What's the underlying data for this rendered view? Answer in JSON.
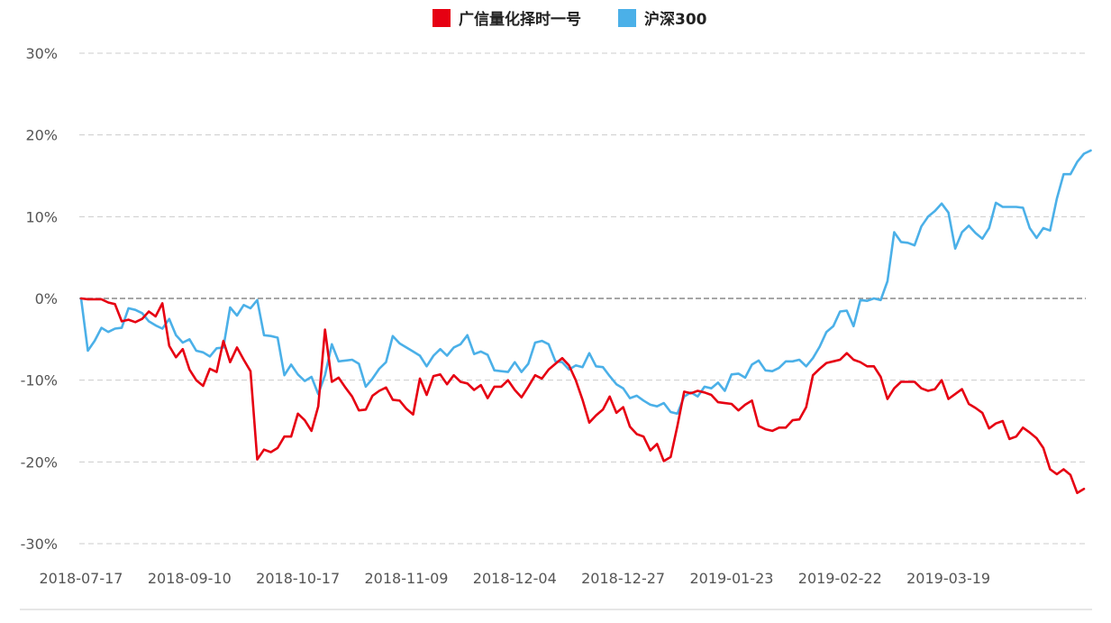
{
  "chart_data": {
    "type": "line",
    "xlabel": "",
    "ylabel": "",
    "ylim": [
      -30,
      30
    ],
    "ytick_labels": [
      {
        "value": 30,
        "label": "30%"
      },
      {
        "value": 20,
        "label": "20%"
      },
      {
        "value": 10,
        "label": "10%"
      },
      {
        "value": 0,
        "label": "0%"
      },
      {
        "value": -10,
        "label": "-10%"
      },
      {
        "value": -20,
        "label": "-20%"
      },
      {
        "value": -30,
        "label": "-30%"
      }
    ],
    "xtick_labels": [
      {
        "index": 0,
        "label": "2018-07-17"
      },
      {
        "index": 16,
        "label": "2018-09-10"
      },
      {
        "index": 32,
        "label": "2018-10-17"
      },
      {
        "index": 48,
        "label": "2018-11-09"
      },
      {
        "index": 64,
        "label": "2018-12-04"
      },
      {
        "index": 80,
        "label": "2018-12-27"
      },
      {
        "index": 96,
        "label": "2019-01-23"
      },
      {
        "index": 112,
        "label": "2019-02-22"
      },
      {
        "index": 128,
        "label": "2019-03-19"
      }
    ],
    "grid": true,
    "legend_position": "top-center",
    "series": [
      {
        "name": "广信量化择时一号",
        "color": "#e60012",
        "values": [
          0,
          -0.1,
          -0.1,
          -0.1,
          -0.5,
          -0.7,
          -2.8,
          -2.6,
          -2.9,
          -2.5,
          -1.6,
          -2.2,
          -0.6,
          -5.8,
          -7.2,
          -6.2,
          -8.7,
          -10,
          -10.7,
          -8.6,
          -9,
          -5.2,
          -7.8,
          -6,
          -7.5,
          -8.9,
          -19.7,
          -18.5,
          -18.8,
          -18.3,
          -16.9,
          -16.9,
          -14.1,
          -14.9,
          -16.2,
          -13.2,
          -3.8,
          -10.2,
          -9.7,
          -10.9,
          -12,
          -13.7,
          -13.6,
          -11.9,
          -11.3,
          -10.9,
          -12.4,
          -12.5,
          -13.5,
          -14.2,
          -9.8,
          -11.8,
          -9.5,
          -9.3,
          -10.5,
          -9.4,
          -10.2,
          -10.4,
          -11.2,
          -10.6,
          -12.2,
          -10.8,
          -10.8,
          -10,
          -11.2,
          -12.1,
          -10.8,
          -9.4,
          -9.8,
          -8.7,
          -8,
          -7.3,
          -8.2,
          -10,
          -12.4,
          -15.2,
          -14.3,
          -13.6,
          -12,
          -14,
          -13.3,
          -15.7,
          -16.6,
          -16.9,
          -18.6,
          -17.8,
          -19.9,
          -19.4,
          -15.6,
          -11.4,
          -11.6,
          -11.3,
          -11.5,
          -11.8,
          -12.7,
          -12.8,
          -12.9,
          -13.7,
          -13,
          -12.5,
          -15.6,
          -16,
          -16.2,
          -15.8,
          -15.8,
          -14.9,
          -14.8,
          -13.3,
          -9.4,
          -8.6,
          -7.9,
          -7.7,
          -7.5,
          -6.7,
          -7.5,
          -7.8,
          -8.3,
          -8.3,
          -9.6,
          -12.3,
          -11,
          -10.2,
          -10.2,
          -10.2,
          -11,
          -11.3,
          -11.1,
          -10,
          -12.3,
          -11.7,
          -11.1,
          -12.9,
          -13.4,
          -14,
          -15.9,
          -15.3,
          -15,
          -17.2,
          -16.9,
          -15.8,
          -16.4,
          -17.1,
          -18.3,
          -20.9,
          -21.5,
          -20.9,
          -21.6,
          -23.8,
          -23.3
        ]
      },
      {
        "name": "沪深300",
        "color": "#4bb0e8",
        "values": [
          0,
          -6.4,
          -5.2,
          -3.6,
          -4.1,
          -3.7,
          -3.6,
          -1.2,
          -1.4,
          -1.8,
          -2.8,
          -3.3,
          -3.7,
          -2.5,
          -4.5,
          -5.4,
          -5,
          -6.4,
          -6.6,
          -7.1,
          -6.1,
          -6,
          -1.1,
          -2.1,
          -0.8,
          -1.2,
          -0.2,
          -4.5,
          -4.6,
          -4.8,
          -9.4,
          -8.1,
          -9.3,
          -10.1,
          -9.6,
          -11.7,
          -9.4,
          -5.6,
          -7.7,
          -7.6,
          -7.5,
          -8,
          -10.8,
          -9.8,
          -8.6,
          -7.8,
          -4.6,
          -5.5,
          -6,
          -6.5,
          -7,
          -8.3,
          -7,
          -6.2,
          -7,
          -6,
          -5.6,
          -4.5,
          -6.8,
          -6.5,
          -6.9,
          -8.8,
          -8.9,
          -9,
          -7.8,
          -9,
          -8,
          -5.4,
          -5.2,
          -5.6,
          -7.7,
          -7.8,
          -8.7,
          -8.2,
          -8.4,
          -6.7,
          -8.3,
          -8.4,
          -9.5,
          -10.5,
          -11,
          -12.2,
          -11.9,
          -12.5,
          -13,
          -13.2,
          -12.8,
          -13.9,
          -14.1,
          -12,
          -11.5,
          -12,
          -10.8,
          -11,
          -10.3,
          -11.3,
          -9.3,
          -9.2,
          -9.7,
          -8.1,
          -7.6,
          -8.8,
          -8.9,
          -8.5,
          -7.7,
          -7.7,
          -7.5,
          -8.3,
          -7.3,
          -5.9,
          -4.1,
          -3.4,
          -1.6,
          -1.5,
          -3.4,
          -0.2,
          -0.3,
          0,
          -0.2,
          2.1,
          8.1,
          6.9,
          6.8,
          6.5,
          8.8,
          10,
          10.7,
          11.6,
          10.5,
          6.1,
          8.1,
          8.9,
          8,
          7.3,
          8.6,
          11.7,
          11.2,
          11.2,
          11.2,
          11.1,
          8.6,
          7.4,
          8.6,
          8.3,
          12.2,
          15.2,
          15.2,
          16.7,
          17.7,
          18.1
        ]
      }
    ]
  }
}
